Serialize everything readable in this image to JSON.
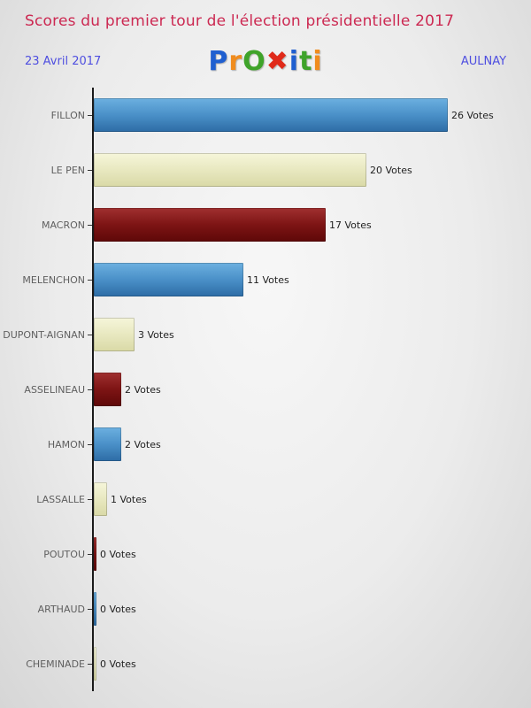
{
  "header": {
    "title": "Scores du premier tour de l'élection présidentielle 2017",
    "date": "23 Avril 2017",
    "location": "AULNAY",
    "logo_letters": [
      {
        "char": "P",
        "color": "#1f5fd0"
      },
      {
        "char": "r",
        "color": "#f08c1e"
      },
      {
        "char": "O",
        "color": "#3fa32a"
      },
      {
        "char": "✖",
        "color": "#e02a1a"
      },
      {
        "char": "i",
        "color": "#1f5fd0"
      },
      {
        "char": "t",
        "color": "#3fa32a"
      },
      {
        "char": "i",
        "color": "#f08c1e"
      }
    ]
  },
  "colors": {
    "title": "#cc2952",
    "meta": "#4f4fe0",
    "axis": "#1a1a1a",
    "palette": {
      "blue": {
        "top": "#6cb0e0",
        "mid": "#4a90c8",
        "bottom": "#2d6ca5"
      },
      "cream": {
        "top": "#f6f6da",
        "mid": "#e8e8c0",
        "bottom": "#d9d9a6"
      },
      "maroon": {
        "top": "#a03030",
        "mid": "#7d1414",
        "bottom": "#5e0808"
      }
    }
  },
  "chart_data": {
    "type": "bar",
    "orientation": "horizontal",
    "title": "Scores du premier tour de l'élection présidentielle 2017",
    "xlabel": "",
    "ylabel": "",
    "xlim": [
      0,
      26
    ],
    "grid": false,
    "legend": false,
    "categories": [
      "FILLON",
      "LE PEN",
      "MACRON",
      "MELENCHON",
      "DUPONT-AIGNAN",
      "ASSELINEAU",
      "HAMON",
      "LASSALLE",
      "POUTOU",
      "ARTHAUD",
      "CHEMINADE"
    ],
    "values": [
      26,
      20,
      17,
      11,
      3,
      2,
      2,
      1,
      0,
      0,
      0
    ],
    "value_labels": [
      "26 Votes",
      "20 Votes",
      "17 Votes",
      "11 Votes",
      "3 Votes",
      "2 Votes",
      "2 Votes",
      "1 Votes",
      "0 Votes",
      "0 Votes",
      "0 Votes"
    ],
    "bar_colors": [
      "blue",
      "cream",
      "maroon",
      "blue",
      "cream",
      "maroon",
      "blue",
      "cream",
      "maroon",
      "blue",
      "cream"
    ]
  }
}
